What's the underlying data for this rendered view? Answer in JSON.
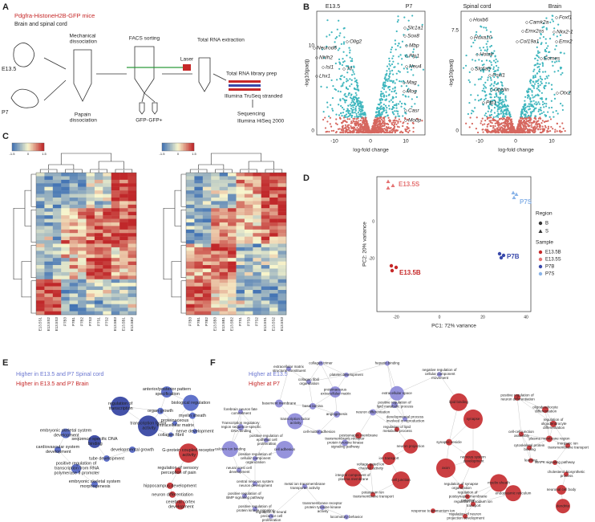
{
  "panel_a": {
    "label": "A",
    "title": "Pdgfra-HistoneH2B-GFP mice",
    "subtitle": "Brain and spinal cord",
    "stages": [
      "E13.5",
      "P7"
    ],
    "steps": [
      "Mechanical dissociation",
      "Papain dissociation",
      "FACS sorting",
      "Laser",
      "GFP-",
      "GFP+",
      "Total RNA extraction",
      "Total RNA library prep",
      "Illumina TruSeq stranded",
      "Sequencing",
      "Illumina HiSeq 2000"
    ]
  },
  "panel_b": {
    "label": "B",
    "plots": [
      {
        "groups": [
          "E13.5",
          "P7"
        ],
        "y_label": "-log10(padj)",
        "x_label": "log-fold change",
        "yticks": [
          "10",
          "0"
        ],
        "xticks": [
          "-10",
          "0",
          "10"
        ],
        "genes": [
          "Slc1a1",
          "Sox8",
          "Mbp",
          "Plp1",
          "Neu4",
          "Mag",
          "Mog",
          "Casr",
          "Mobp",
          "Olig2",
          "Neurod6",
          "Nhlh2",
          "Isl1",
          "Lhx1",
          "Tll"
        ]
      },
      {
        "groups": [
          "Spinal cord",
          "Brain"
        ],
        "y_label": "-log10(padj)",
        "x_label": "log-fold change",
        "yticks": [
          "7.5",
          "0"
        ],
        "xticks": [
          "-10",
          "0",
          "10"
        ],
        "genes": [
          "Hoxb6",
          "Hoxa10",
          "Camk2a",
          "Emx2os",
          "Foxf1",
          "Nkx2-1",
          "Col19a1",
          "Emx2",
          "Hotair",
          "Slc6a5",
          "Foxl1",
          "Eomes",
          "Opalin",
          "Otx2",
          "Plp1"
        ]
      }
    ]
  },
  "panel_c": {
    "label": "C",
    "colorbar_ticks": [
      "-1.5",
      "0",
      "1.5"
    ],
    "heatmaps": [
      {
        "columns": [
          "E13.5S1",
          "E13.5S2",
          "E13.5S3",
          "P7B3",
          "P7B1",
          "P7B2",
          "P7S3",
          "P7S1",
          "P7S2",
          "E13.5B3",
          "E13.5B1",
          "E13.5B2"
        ]
      },
      {
        "columns": [
          "P7B3",
          "P7B1",
          "P7B2",
          "E13.5B3",
          "E13.5B1",
          "E13.5B2",
          "P7S1",
          "P7S3",
          "P7S2",
          "E13.5S1",
          "E13.5S2",
          "E13.5S3"
        ]
      }
    ]
  },
  "panel_d": {
    "label": "D",
    "x_label": "PC1: 72% variance",
    "y_label": "PC2: 20% variance",
    "xticks": [
      "-20",
      "0",
      "20",
      "40"
    ],
    "yticks": [
      "0",
      "-20"
    ],
    "point_labels": [
      "E13.5S",
      "P7S",
      "E13.5B",
      "P7B"
    ],
    "legend": {
      "region_title": "Region",
      "regions": [
        "B",
        "S"
      ],
      "sample_title": "Sample",
      "samples": [
        "E13.5B",
        "E13.5S",
        "P7B",
        "P7S"
      ]
    }
  },
  "panel_e": {
    "label": "E",
    "legend": [
      "Higher in E13.5 and P7 Spinal cord",
      "Higher in E13.5 and P7 Brain"
    ],
    "terms": [
      "regulation of transcription",
      "anterior/posterior pattern specification",
      "biological regulation",
      "organ growth",
      "myelin sheath",
      "proteinaceous extracellular matrix",
      "transcription factor activity",
      "embryonic skeletal system development",
      "sequence-specific DNA binding",
      "collagen fibril",
      "nerve development",
      "cardiovascular system development",
      "developmental growth",
      "G-protein coupled receptor activity",
      "tube development",
      "positive regulation of transcription from RNA polymerase II promoter",
      "regulation of sensory perception of pain",
      "embryonic skeletal system morphogenesis",
      "hippocampus development",
      "neuron differentiation",
      "cerebral cortex development"
    ]
  },
  "panel_f": {
    "label": "F",
    "legend": [
      "Higher at E13.5",
      "Higher at P7"
    ],
    "terms": [
      "collagen trimer",
      "extracellular matrix structural constituent",
      "heparin binding",
      "platelet development",
      "negative regulation of cellular component movement",
      "collagen fibril organization",
      "proteinaceous extracellular matrix",
      "extracellular space",
      "basement membrane",
      "positive regulation of lipid metabolic process",
      "forebrain neuron fate commitment",
      "basal lamina",
      "angiogenesis",
      "lipid binding",
      "positive regulation of neuron differentiation",
      "neuron differentiation",
      "developmental process involved in reproduction",
      "oligodendrocyte differentiation",
      "synapse",
      "Transcription regulatory region sequence-specific DNA binding",
      "transcription factor activity",
      "regulation of oligodendrocyte differentiation",
      "cell-matrix adhesion",
      "regulation of lipid metabolic process",
      "cell-cell junction assembly",
      "positive regulation of epithelial cell proliferation",
      "postsynaptic membrane",
      "plasma membrane region",
      "calcium ion binding",
      "cell adhesion",
      "transmembrane receptor protein tyrosine kinase signaling pathway",
      "neuron projection",
      "synaptic vesicle",
      "cytoskeletal protein binding",
      "inorganic ion transmembrane transport",
      "positive regulation of cellular component organization",
      "ion transport",
      "nervous system development",
      "learning",
      "MAPK signaling pathway",
      "voltage-gated ion channel activity",
      "axon",
      "neural crest cell development",
      "integral component of plasma membrane",
      "cell junction",
      "cholesterol biosynthetic process",
      "myelin sheath",
      "endoplasmic reticulum",
      "metal ion transmembrane transporter activity",
      "central nervous system neuron development",
      "positive regulation of BMP signaling pathway",
      "potassium ion transmembrane transport",
      "regulation of postsynaptic membrane potential",
      "regulation of synapse organization",
      "neuronal cell body",
      "positive regulation of protein kinase signaling",
      "transmembrane receptor protein tyrosine kinase activity",
      "regulation of sodium ion transport",
      "dendrite",
      "regulation of neural precursor cell proliferation",
      "locomotory behavior",
      "response to ammonium ion",
      "regulation of neuron projection development"
    ]
  }
}
